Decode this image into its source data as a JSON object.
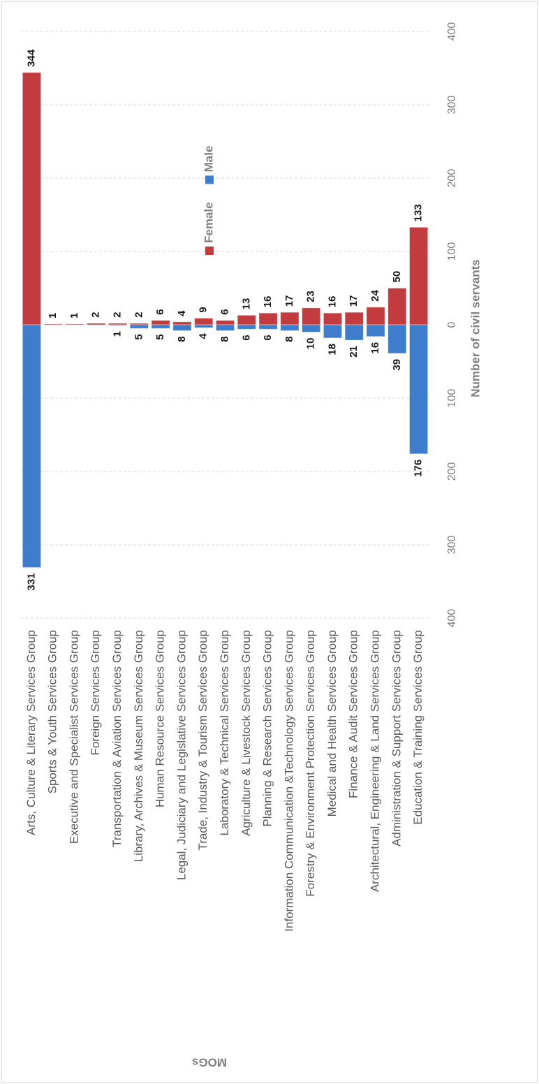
{
  "chart_data": {
    "type": "bar",
    "xlabel": "Number of civil servants",
    "ylabel": "MOGs",
    "categories": [
      "Arts, Culture & Literary Services Group",
      "Sports & Youth Services Group",
      "Executive and Specialist Services Group",
      "Foreign Services Group",
      "Transportation & Aviation Services Group",
      "Library, Archives & Museum Services Group",
      "Human Resource Services Group",
      "Legal, Judiciary and Legislative Services Group",
      "Trade, Industry & Tourism Services Group",
      "Laboratory & Technical Services Group",
      "Agriculture & Livestock Services Group",
      "Planning & Research Services Group",
      "Information Communication &Technology Services Group",
      "Forestry & Environment Protection Services Group",
      "Medical and Health Services Group",
      "Finance & Audit Services Group",
      "Architectural, Engineering & Land Services Group",
      "Administration & Support Services Group",
      "Education & Training Services Group"
    ],
    "series": [
      {
        "name": "Female",
        "color": "#c23b3e",
        "values": [
          344,
          1,
          1,
          2,
          2,
          2,
          6,
          4,
          9,
          6,
          13,
          16,
          17,
          23,
          16,
          17,
          24,
          50,
          133
        ]
      },
      {
        "name": "Male",
        "color": "#3d7dcc",
        "values": [
          -331,
          null,
          null,
          null,
          -1,
          -5,
          -5,
          -8,
          -4,
          -8,
          -6,
          -6,
          -8,
          -10,
          -18,
          -21,
          -16,
          -39,
          -176
        ],
        "value_labels": [
          "331",
          null,
          null,
          null,
          "1",
          "5",
          "5",
          "8",
          "4",
          "8",
          "6",
          "6",
          "8",
          "10",
          "18",
          "21",
          "16",
          "39",
          "176"
        ]
      }
    ],
    "xlim": [
      -400,
      400
    ],
    "xticks": [
      {
        "value": -400,
        "label": "400"
      },
      {
        "value": -300,
        "label": "300"
      },
      {
        "value": -200,
        "label": "200"
      },
      {
        "value": -100,
        "label": "100"
      },
      0,
      100,
      200,
      300,
      400
    ],
    "grid": true,
    "legend": "upper right"
  }
}
